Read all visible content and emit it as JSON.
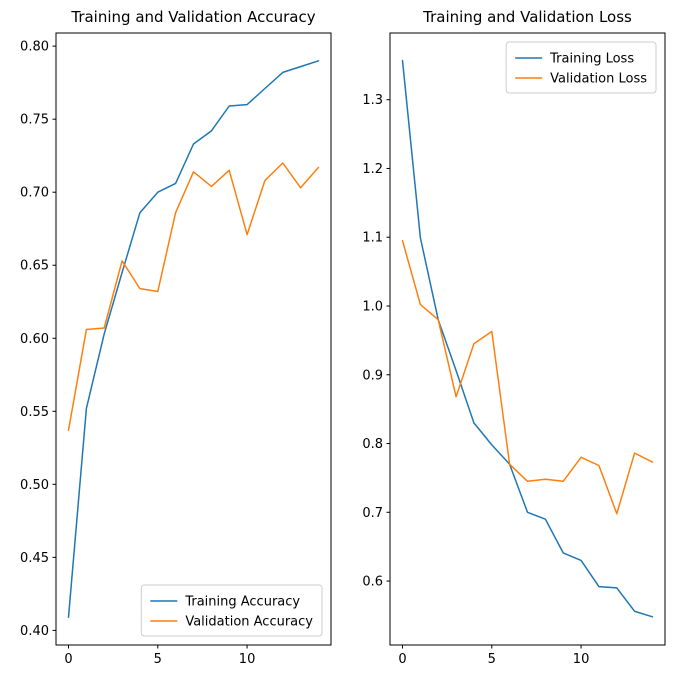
{
  "figure": {
    "background": "#ffffff",
    "accent_blue": "#1f77b4",
    "accent_orange": "#ff7f0e"
  },
  "chart_data": [
    {
      "type": "line",
      "title": "Training and Validation Accuracy",
      "xlabel": "",
      "ylabel": "",
      "grid": false,
      "legend_position": "lower right",
      "x": [
        0,
        1,
        2,
        3,
        4,
        5,
        6,
        7,
        8,
        9,
        10,
        11,
        12,
        13,
        14
      ],
      "xlim": [
        -0.7,
        14.7
      ],
      "ylim": [
        0.39,
        0.809
      ],
      "xtick_values": [
        0,
        5,
        10
      ],
      "xtick_labels": [
        "0",
        "5",
        "10"
      ],
      "ytick_values": [
        0.4,
        0.45,
        0.5,
        0.55,
        0.6,
        0.65,
        0.7,
        0.75,
        0.8
      ],
      "ytick_labels": [
        "0.40",
        "0.45",
        "0.50",
        "0.55",
        "0.60",
        "0.65",
        "0.70",
        "0.75",
        "0.80"
      ],
      "series": [
        {
          "name": "Training Accuracy",
          "color": "#1f77b4",
          "values": [
            0.409,
            0.552,
            0.603,
            0.645,
            0.686,
            0.7,
            0.706,
            0.733,
            0.742,
            0.759,
            0.76,
            0.771,
            0.782,
            0.786,
            0.79
          ]
        },
        {
          "name": "Validation Accuracy",
          "color": "#ff7f0e",
          "values": [
            0.537,
            0.606,
            0.607,
            0.653,
            0.634,
            0.632,
            0.686,
            0.714,
            0.704,
            0.715,
            0.671,
            0.708,
            0.72,
            0.703,
            0.717
          ]
        }
      ]
    },
    {
      "type": "line",
      "title": "Training and Validation Loss",
      "xlabel": "",
      "ylabel": "",
      "grid": false,
      "legend_position": "upper right",
      "x": [
        0,
        1,
        2,
        3,
        4,
        5,
        6,
        7,
        8,
        9,
        10,
        11,
        12,
        13,
        14
      ],
      "xlim": [
        -0.7,
        14.7
      ],
      "ylim": [
        0.507,
        1.397
      ],
      "xtick_values": [
        0,
        5,
        10
      ],
      "xtick_labels": [
        "0",
        "5",
        "10"
      ],
      "ytick_values": [
        0.6,
        0.7,
        0.8,
        0.9,
        1.0,
        1.1,
        1.2,
        1.3
      ],
      "ytick_labels": [
        "0.6",
        "0.7",
        "0.8",
        "0.9",
        "1.0",
        "1.1",
        "1.2",
        "1.3"
      ],
      "series": [
        {
          "name": "Training Loss",
          "color": "#1f77b4",
          "values": [
            1.357,
            1.099,
            0.98,
            0.906,
            0.83,
            0.798,
            0.77,
            0.7,
            0.69,
            0.641,
            0.63,
            0.592,
            0.59,
            0.556,
            0.548
          ]
        },
        {
          "name": "Validation Loss",
          "color": "#ff7f0e",
          "values": [
            1.095,
            1.002,
            0.98,
            0.868,
            0.945,
            0.963,
            0.77,
            0.745,
            0.748,
            0.745,
            0.78,
            0.768,
            0.698,
            0.786,
            0.773
          ]
        }
      ]
    }
  ]
}
